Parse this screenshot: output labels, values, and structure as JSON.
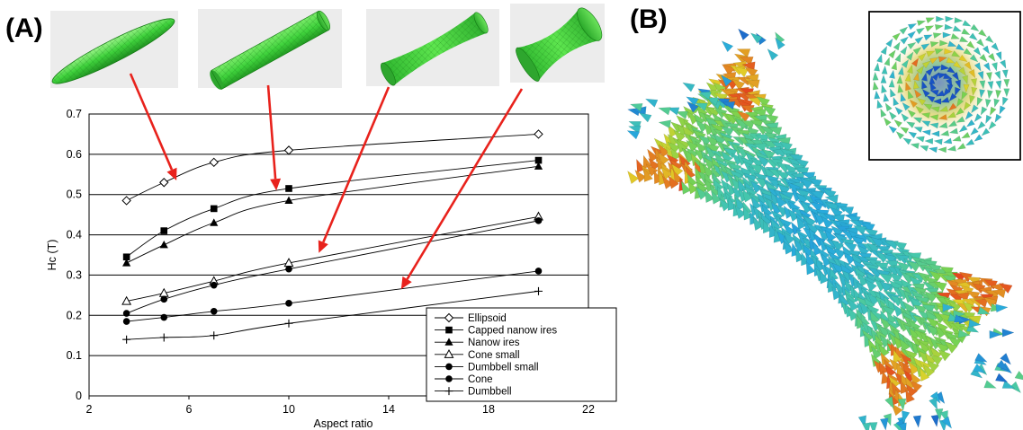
{
  "panels": {
    "a_label": "(A)",
    "b_label": "(B)"
  },
  "chart_data": {
    "type": "line",
    "title": "",
    "xlabel": "Aspect ratio",
    "ylabel": "Hc (T)",
    "xlim": [
      2,
      22
    ],
    "ylim": [
      0,
      0.7
    ],
    "xticks": [
      2,
      6,
      10,
      14,
      18,
      22
    ],
    "yticks": [
      0,
      0.1,
      0.2,
      0.3,
      0.4,
      0.5,
      0.6,
      0.7
    ],
    "grid": "horizontal",
    "legend_position": "bottom-right",
    "series": [
      {
        "name": "Ellipsoid",
        "marker": "diamond-open",
        "x": [
          3.5,
          5,
          7,
          10,
          20
        ],
        "y": [
          0.485,
          0.53,
          0.58,
          0.61,
          0.65
        ]
      },
      {
        "name": "Capped nanow ires",
        "marker": "square-filled",
        "x": [
          3.5,
          5,
          7,
          10,
          20
        ],
        "y": [
          0.345,
          0.41,
          0.465,
          0.515,
          0.585
        ]
      },
      {
        "name": "Nanow ires",
        "marker": "triangle-filled",
        "x": [
          3.5,
          5,
          7,
          10,
          20
        ],
        "y": [
          0.33,
          0.375,
          0.43,
          0.485,
          0.57
        ]
      },
      {
        "name": "Cone small",
        "marker": "triangle-open",
        "x": [
          3.5,
          5,
          7,
          10,
          20
        ],
        "y": [
          0.235,
          0.255,
          0.285,
          0.33,
          0.445
        ]
      },
      {
        "name": "Dumbbell small",
        "marker": "circle-filled",
        "x": [
          3.5,
          5,
          7,
          10,
          20
        ],
        "y": [
          0.205,
          0.24,
          0.275,
          0.315,
          0.435
        ]
      },
      {
        "name": "Cone",
        "marker": "circle-filled",
        "x": [
          3.5,
          5,
          7,
          10,
          20
        ],
        "y": [
          0.185,
          0.195,
          0.21,
          0.23,
          0.31
        ]
      },
      {
        "name": "Dumbbell",
        "marker": "plus",
        "x": [
          3.5,
          5,
          7,
          10,
          20
        ],
        "y": [
          0.14,
          0.145,
          0.15,
          0.18,
          0.26
        ]
      }
    ],
    "annotations": [
      {
        "shape": "ellipsoid",
        "points_to": {
          "x": 5.5,
          "y": 0.535
        }
      },
      {
        "shape": "capped nanowire",
        "points_to": {
          "x": 9.5,
          "y": 0.51
        }
      },
      {
        "shape": "cone small",
        "points_to": {
          "x": 11.2,
          "y": 0.355
        }
      },
      {
        "shape": "dumbbell",
        "points_to": {
          "x": 14.5,
          "y": 0.265
        }
      }
    ]
  },
  "colors": {
    "shape_green": "#3fd23c",
    "shape_green_light": "#8cf07a",
    "arrow_red": "#e8221c",
    "axis": "#000000",
    "inset_border": "#000000"
  }
}
